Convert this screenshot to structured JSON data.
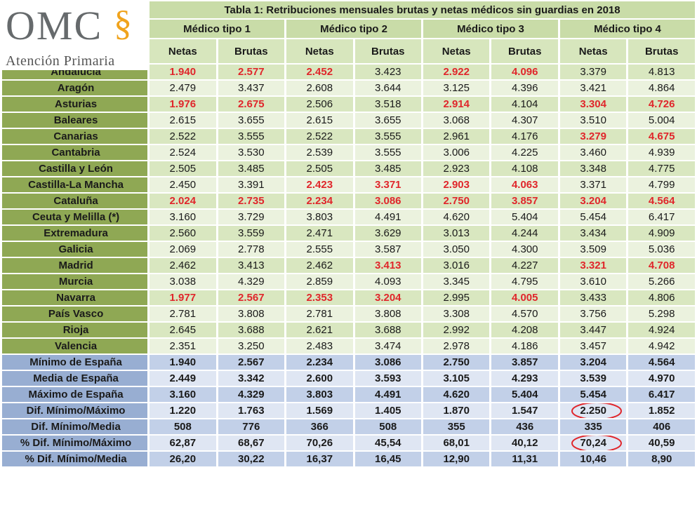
{
  "logo": {
    "text": "OMC",
    "symbol": "§",
    "subtitle": "Atención Primaria"
  },
  "table": {
    "title": "Tabla 1: Retribuciones  mensuales brutas y netas médicos sin guardias en 2018",
    "medico_types": [
      "Médico tipo  1",
      "Médico tipo  2",
      "Médico tipo  3",
      "Médico tipo  4"
    ],
    "col_netas": "Netas",
    "col_brutas": "Brutas",
    "regions": [
      {
        "name": "Andalucía",
        "values": [
          "1.940",
          "2.577",
          "2.452",
          "3.423",
          "2.922",
          "4.096",
          "3.379",
          "4.813"
        ],
        "red": [
          0,
          1,
          2,
          4,
          5
        ]
      },
      {
        "name": "Aragón",
        "values": [
          "2.479",
          "3.437",
          "2.608",
          "3.644",
          "3.125",
          "4.396",
          "3.421",
          "4.864"
        ],
        "red": []
      },
      {
        "name": "Asturias",
        "values": [
          "1.976",
          "2.675",
          "2.506",
          "3.518",
          "2.914",
          "4.104",
          "3.304",
          "4.726"
        ],
        "red": [
          0,
          1,
          4,
          6,
          7
        ]
      },
      {
        "name": "Baleares",
        "values": [
          "2.615",
          "3.655",
          "2.615",
          "3.655",
          "3.068",
          "4.307",
          "3.510",
          "5.004"
        ],
        "red": []
      },
      {
        "name": "Canarias",
        "values": [
          "2.522",
          "3.555",
          "2.522",
          "3.555",
          "2.961",
          "4.176",
          "3.279",
          "4.675"
        ],
        "red": [
          6,
          7
        ]
      },
      {
        "name": "Cantabria",
        "values": [
          "2.524",
          "3.530",
          "2.539",
          "3.555",
          "3.006",
          "4.225",
          "3.460",
          "4.939"
        ],
        "red": []
      },
      {
        "name": "Castilla y León",
        "values": [
          "2.505",
          "3.485",
          "2.505",
          "3.485",
          "2.923",
          "4.108",
          "3.348",
          "4.775"
        ],
        "red": []
      },
      {
        "name": "Castilla-La Mancha",
        "values": [
          "2.450",
          "3.391",
          "2.423",
          "3.371",
          "2.903",
          "4.063",
          "3.371",
          "4.799"
        ],
        "red": [
          2,
          3,
          4,
          5
        ]
      },
      {
        "name": "Cataluña",
        "values": [
          "2.024",
          "2.735",
          "2.234",
          "3.086",
          "2.750",
          "3.857",
          "3.204",
          "4.564"
        ],
        "red": [
          0,
          1,
          2,
          3,
          4,
          5,
          6,
          7
        ]
      },
      {
        "name": "Ceuta y Melilla (*)",
        "values": [
          "3.160",
          "3.729",
          "3.803",
          "4.491",
          "4.620",
          "5.404",
          "5.454",
          "6.417"
        ],
        "red": []
      },
      {
        "name": "Extremadura",
        "values": [
          "2.560",
          "3.559",
          "2.471",
          "3.629",
          "3.013",
          "4.244",
          "3.434",
          "4.909"
        ],
        "red": []
      },
      {
        "name": "Galicia",
        "values": [
          "2.069",
          "2.778",
          "2.555",
          "3.587",
          "3.050",
          "4.300",
          "3.509",
          "5.036"
        ],
        "red": []
      },
      {
        "name": "Madrid",
        "values": [
          "2.462",
          "3.413",
          "2.462",
          "3.413",
          "3.016",
          "4.227",
          "3.321",
          "4.708"
        ],
        "red": [
          3,
          6,
          7
        ]
      },
      {
        "name": "Murcia",
        "values": [
          "3.038",
          "4.329",
          "2.859",
          "4.093",
          "3.345",
          "4.795",
          "3.610",
          "5.266"
        ],
        "red": []
      },
      {
        "name": "Navarra",
        "values": [
          "1.977",
          "2.567",
          "2.353",
          "3.204",
          "2.995",
          "4.005",
          "3.433",
          "4.806"
        ],
        "red": [
          0,
          1,
          2,
          3,
          5
        ]
      },
      {
        "name": "País Vasco",
        "values": [
          "2.781",
          "3.808",
          "2.781",
          "3.808",
          "3.308",
          "4.570",
          "3.756",
          "5.298"
        ],
        "red": []
      },
      {
        "name": "Rioja",
        "values": [
          "2.645",
          "3.688",
          "2.621",
          "3.688",
          "2.992",
          "4.208",
          "3.447",
          "4.924"
        ],
        "red": []
      },
      {
        "name": "Valencia",
        "values": [
          "2.351",
          "3.250",
          "2.483",
          "3.474",
          "2.978",
          "4.186",
          "3.457",
          "4.942"
        ],
        "red": []
      }
    ],
    "summary": [
      {
        "name": "Mínimo de España",
        "values": [
          "1.940",
          "2.567",
          "2.234",
          "3.086",
          "2.750",
          "3.857",
          "3.204",
          "4.564"
        ],
        "circled": []
      },
      {
        "name": "Media de España",
        "values": [
          "2.449",
          "3.342",
          "2.600",
          "3.593",
          "3.105",
          "4.293",
          "3.539",
          "4.970"
        ],
        "circled": []
      },
      {
        "name": "Máximo de España",
        "values": [
          "3.160",
          "4.329",
          "3.803",
          "4.491",
          "4.620",
          "5.404",
          "5.454",
          "6.417"
        ],
        "circled": []
      },
      {
        "name": "Dif. Mínimo/Máximo",
        "values": [
          "1.220",
          "1.763",
          "1.569",
          "1.405",
          "1.870",
          "1.547",
          "2.250",
          "1.852"
        ],
        "circled": [
          6
        ]
      },
      {
        "name": "Dif. Mínimo/Media",
        "values": [
          "508",
          "776",
          "366",
          "508",
          "355",
          "436",
          "335",
          "406"
        ],
        "circled": []
      },
      {
        "name": "% Dif. Mínimo/Máximo",
        "values": [
          "62,87",
          "68,67",
          "70,26",
          "45,54",
          "68,01",
          "40,12",
          "70,24",
          "40,59"
        ],
        "circled": [
          6
        ]
      },
      {
        "name": "% Dif. Mínimo/Media",
        "values": [
          "26,20",
          "30,22",
          "16,37",
          "16,45",
          "12,90",
          "11,31",
          "10,46",
          "8,90"
        ],
        "circled": []
      }
    ]
  },
  "colors": {
    "region_label_bg": "#8fa854",
    "data_row_light": "#ebf2de",
    "data_row_dark": "#d9e7c0",
    "summary_label_bg": "#98aed2",
    "summary_row_dark": "#c2d0e8",
    "summary_row_light": "#dfe6f3",
    "highlight_red": "#e0262b",
    "logo_gold": "#f0a31c"
  }
}
